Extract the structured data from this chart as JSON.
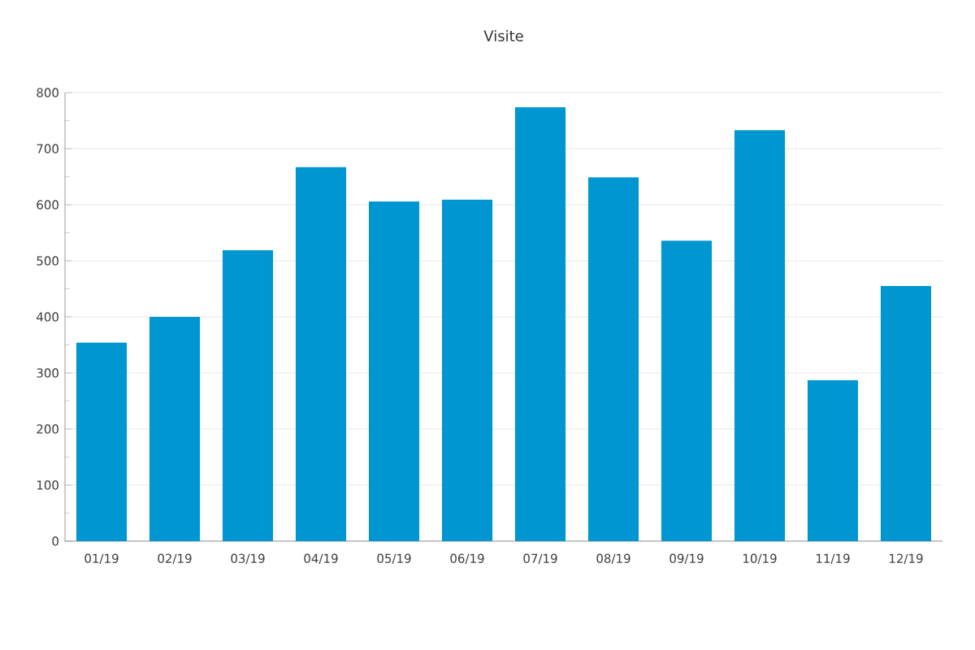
{
  "chart_data": {
    "type": "bar",
    "title": "Visite",
    "categories": [
      "01/19",
      "02/19",
      "03/19",
      "04/19",
      "05/19",
      "06/19",
      "07/19",
      "08/19",
      "09/19",
      "10/19",
      "11/19",
      "12/19"
    ],
    "values": [
      354,
      400,
      519,
      667,
      606,
      609,
      774,
      649,
      536,
      733,
      287,
      455
    ],
    "color": "#0096d2",
    "ylim": [
      0,
      800
    ],
    "yticks": [
      0,
      100,
      200,
      300,
      400,
      500,
      600,
      700,
      800
    ],
    "grid": "y"
  }
}
